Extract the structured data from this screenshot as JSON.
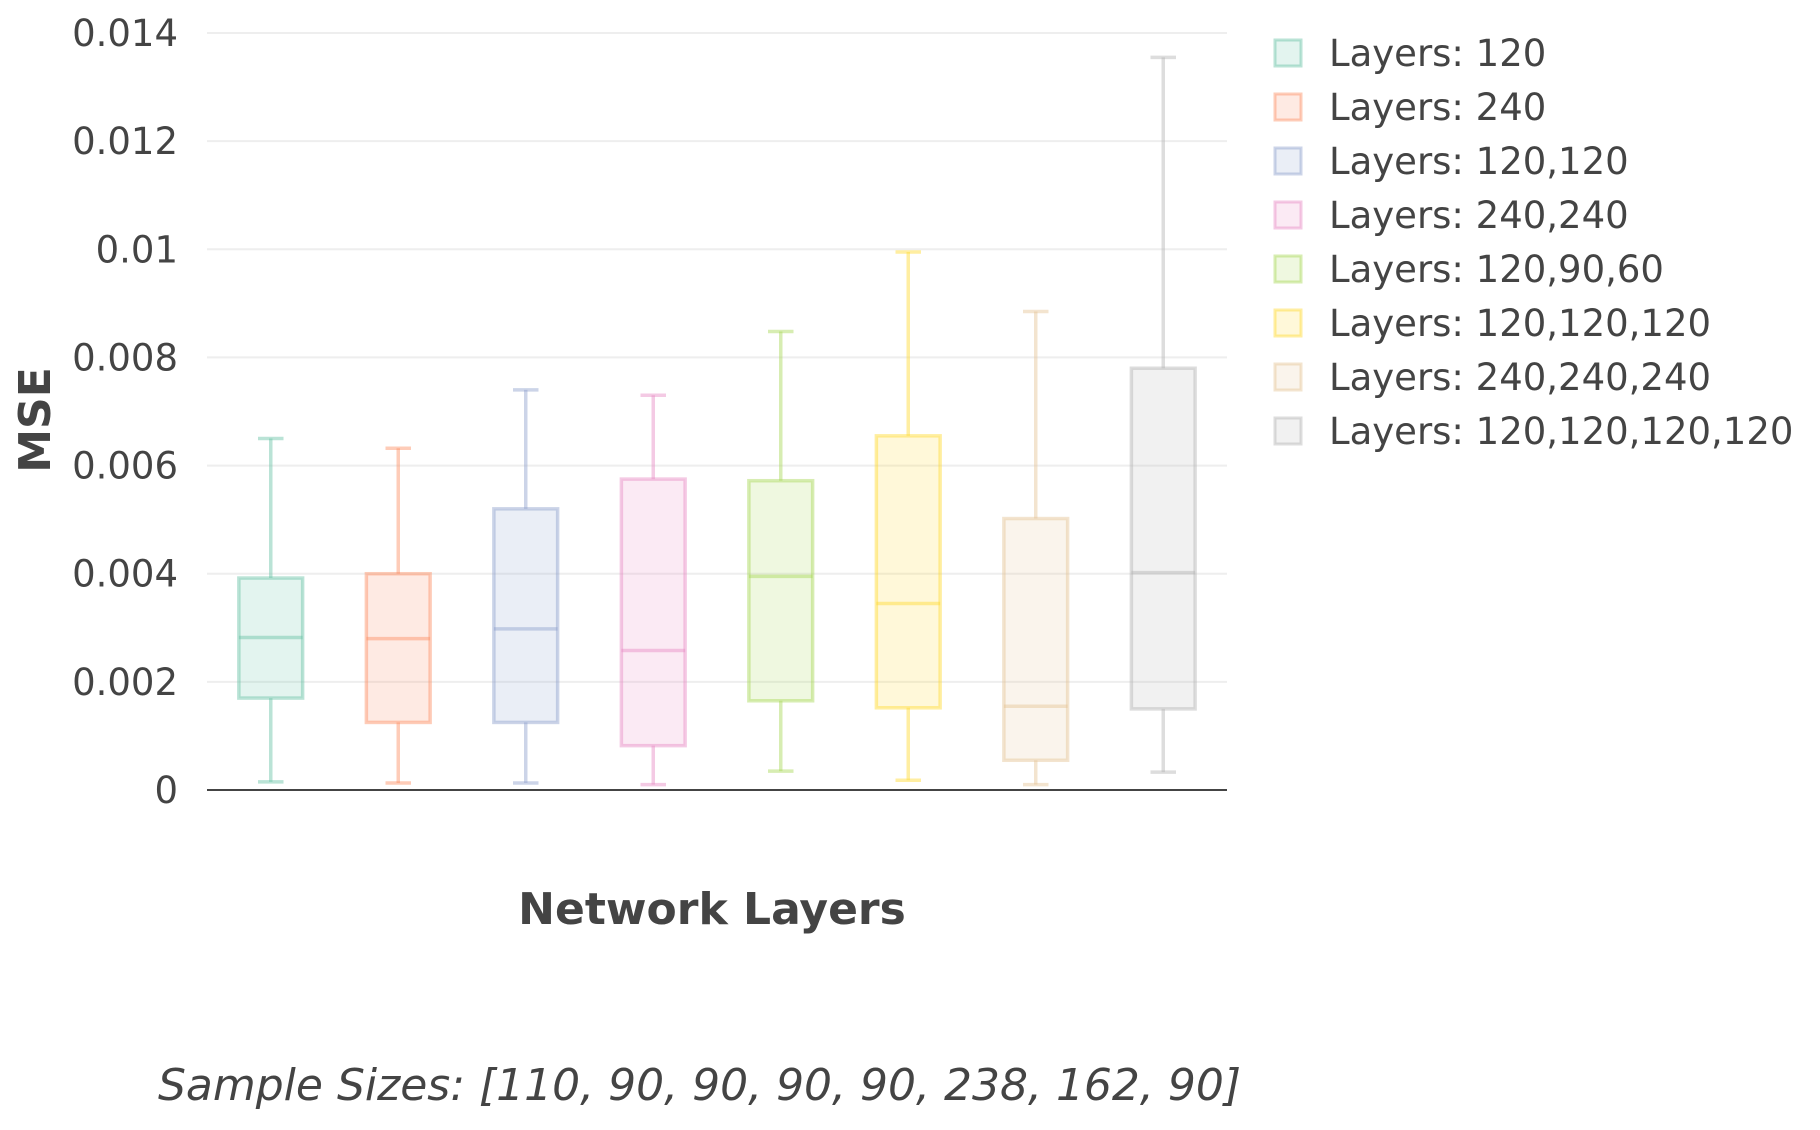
{
  "chart_data": {
    "type": "box",
    "title": "",
    "xlabel": "Network Layers",
    "ylabel": "MSE",
    "ylim": [
      0,
      0.014
    ],
    "yticks": [
      0,
      0.002,
      0.004,
      0.006,
      0.008,
      0.01,
      0.012,
      0.014
    ],
    "ytick_labels": [
      "0",
      "0.002",
      "0.004",
      "0.006",
      "0.008",
      "0.01",
      "0.012",
      "0.014"
    ],
    "grid": true,
    "legend_position": "top-right",
    "annotation": "Sample Sizes: [110, 90, 90, 90, 90, 238, 162, 90]",
    "series": [
      {
        "name": "Layers: 120",
        "min": 0.00015,
        "q1": 0.0017,
        "median": 0.00282,
        "q3": 0.00392,
        "max": 0.0065,
        "color": "#66c2a5"
      },
      {
        "name": "Layers: 240",
        "min": 0.00013,
        "q1": 0.00125,
        "median": 0.0028,
        "q3": 0.004,
        "max": 0.00632,
        "color": "#fc8d62"
      },
      {
        "name": "Layers: 120,120",
        "min": 0.00013,
        "q1": 0.00125,
        "median": 0.00298,
        "q3": 0.0052,
        "max": 0.0074,
        "color": "#8da0cb"
      },
      {
        "name": "Layers: 240,240",
        "min": 0.0001,
        "q1": 0.00082,
        "median": 0.00258,
        "q3": 0.00575,
        "max": 0.0073,
        "color": "#e78ac3"
      },
      {
        "name": "Layers: 120,90,60",
        "min": 0.00035,
        "q1": 0.00165,
        "median": 0.00395,
        "q3": 0.00572,
        "max": 0.00848,
        "color": "#a6d854"
      },
      {
        "name": "Layers: 120,120,120",
        "min": 0.00018,
        "q1": 0.00152,
        "median": 0.00345,
        "q3": 0.00655,
        "max": 0.00995,
        "color": "#ffd92f"
      },
      {
        "name": "Layers: 240,240,240",
        "min": 0.0001,
        "q1": 0.00055,
        "median": 0.00155,
        "q3": 0.00502,
        "max": 0.00885,
        "color": "#e5c494"
      },
      {
        "name": "Layers: 120,120,120,120",
        "min": 0.00033,
        "q1": 0.0015,
        "median": 0.00402,
        "q3": 0.0078,
        "max": 0.01355,
        "color": "#b3b3b3"
      }
    ]
  }
}
